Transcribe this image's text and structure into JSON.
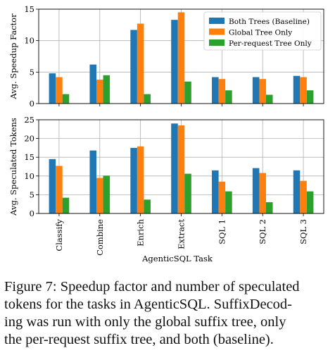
{
  "chart_data": [
    {
      "type": "bar",
      "categories": [
        "Classify",
        "Combine",
        "Enrich",
        "Extract",
        "SQL 1",
        "SQL 2",
        "SQL 3"
      ],
      "series": [
        {
          "name": "Both Trees (Baseline)",
          "values": [
            4.8,
            6.2,
            11.7,
            13.3,
            4.2,
            4.2,
            4.4
          ]
        },
        {
          "name": "Global Tree Only",
          "values": [
            4.2,
            3.8,
            12.7,
            14.5,
            3.9,
            3.9,
            4.2
          ]
        },
        {
          "name": "Per-request Tree Only",
          "values": [
            1.5,
            4.5,
            1.5,
            3.5,
            2.1,
            1.4,
            2.1
          ]
        }
      ],
      "ylabel": "Avg. Speedup Factor",
      "ylim": [
        0,
        15
      ],
      "yticks": [
        0,
        5,
        10,
        15
      ],
      "grid": true,
      "legend": "top-right"
    },
    {
      "type": "bar",
      "categories": [
        "Classify",
        "Combine",
        "Enrich",
        "Extract",
        "SQL 1",
        "SQL 2",
        "SQL 3"
      ],
      "series": [
        {
          "name": "Both Trees (Baseline)",
          "values": [
            14.5,
            16.8,
            17.5,
            24.0,
            11.5,
            12.1,
            11.5
          ]
        },
        {
          "name": "Global Tree Only",
          "values": [
            12.7,
            9.5,
            17.9,
            23.5,
            8.5,
            10.8,
            8.7
          ]
        },
        {
          "name": "Per-request Tree Only",
          "values": [
            4.2,
            10.1,
            3.7,
            10.6,
            5.9,
            3.0,
            5.9
          ]
        }
      ],
      "xlabel": "AgenticSQL Task",
      "ylabel": "Avg. Speculated Tokens",
      "ylim": [
        0,
        25
      ],
      "yticks": [
        0,
        5,
        10,
        15,
        20,
        25
      ],
      "grid": true
    }
  ],
  "colors": [
    "#1f77b4",
    "#ff7f0e",
    "#2ca02c"
  ],
  "caption": [
    "Figure 7: Speedup factor and number of speculated",
    "tokens for the tasks in AgenticSQL. SuffixDecod-",
    "ing was run with only the global suffix tree, only",
    "the per-request suffix tree, and both (baseline)."
  ]
}
